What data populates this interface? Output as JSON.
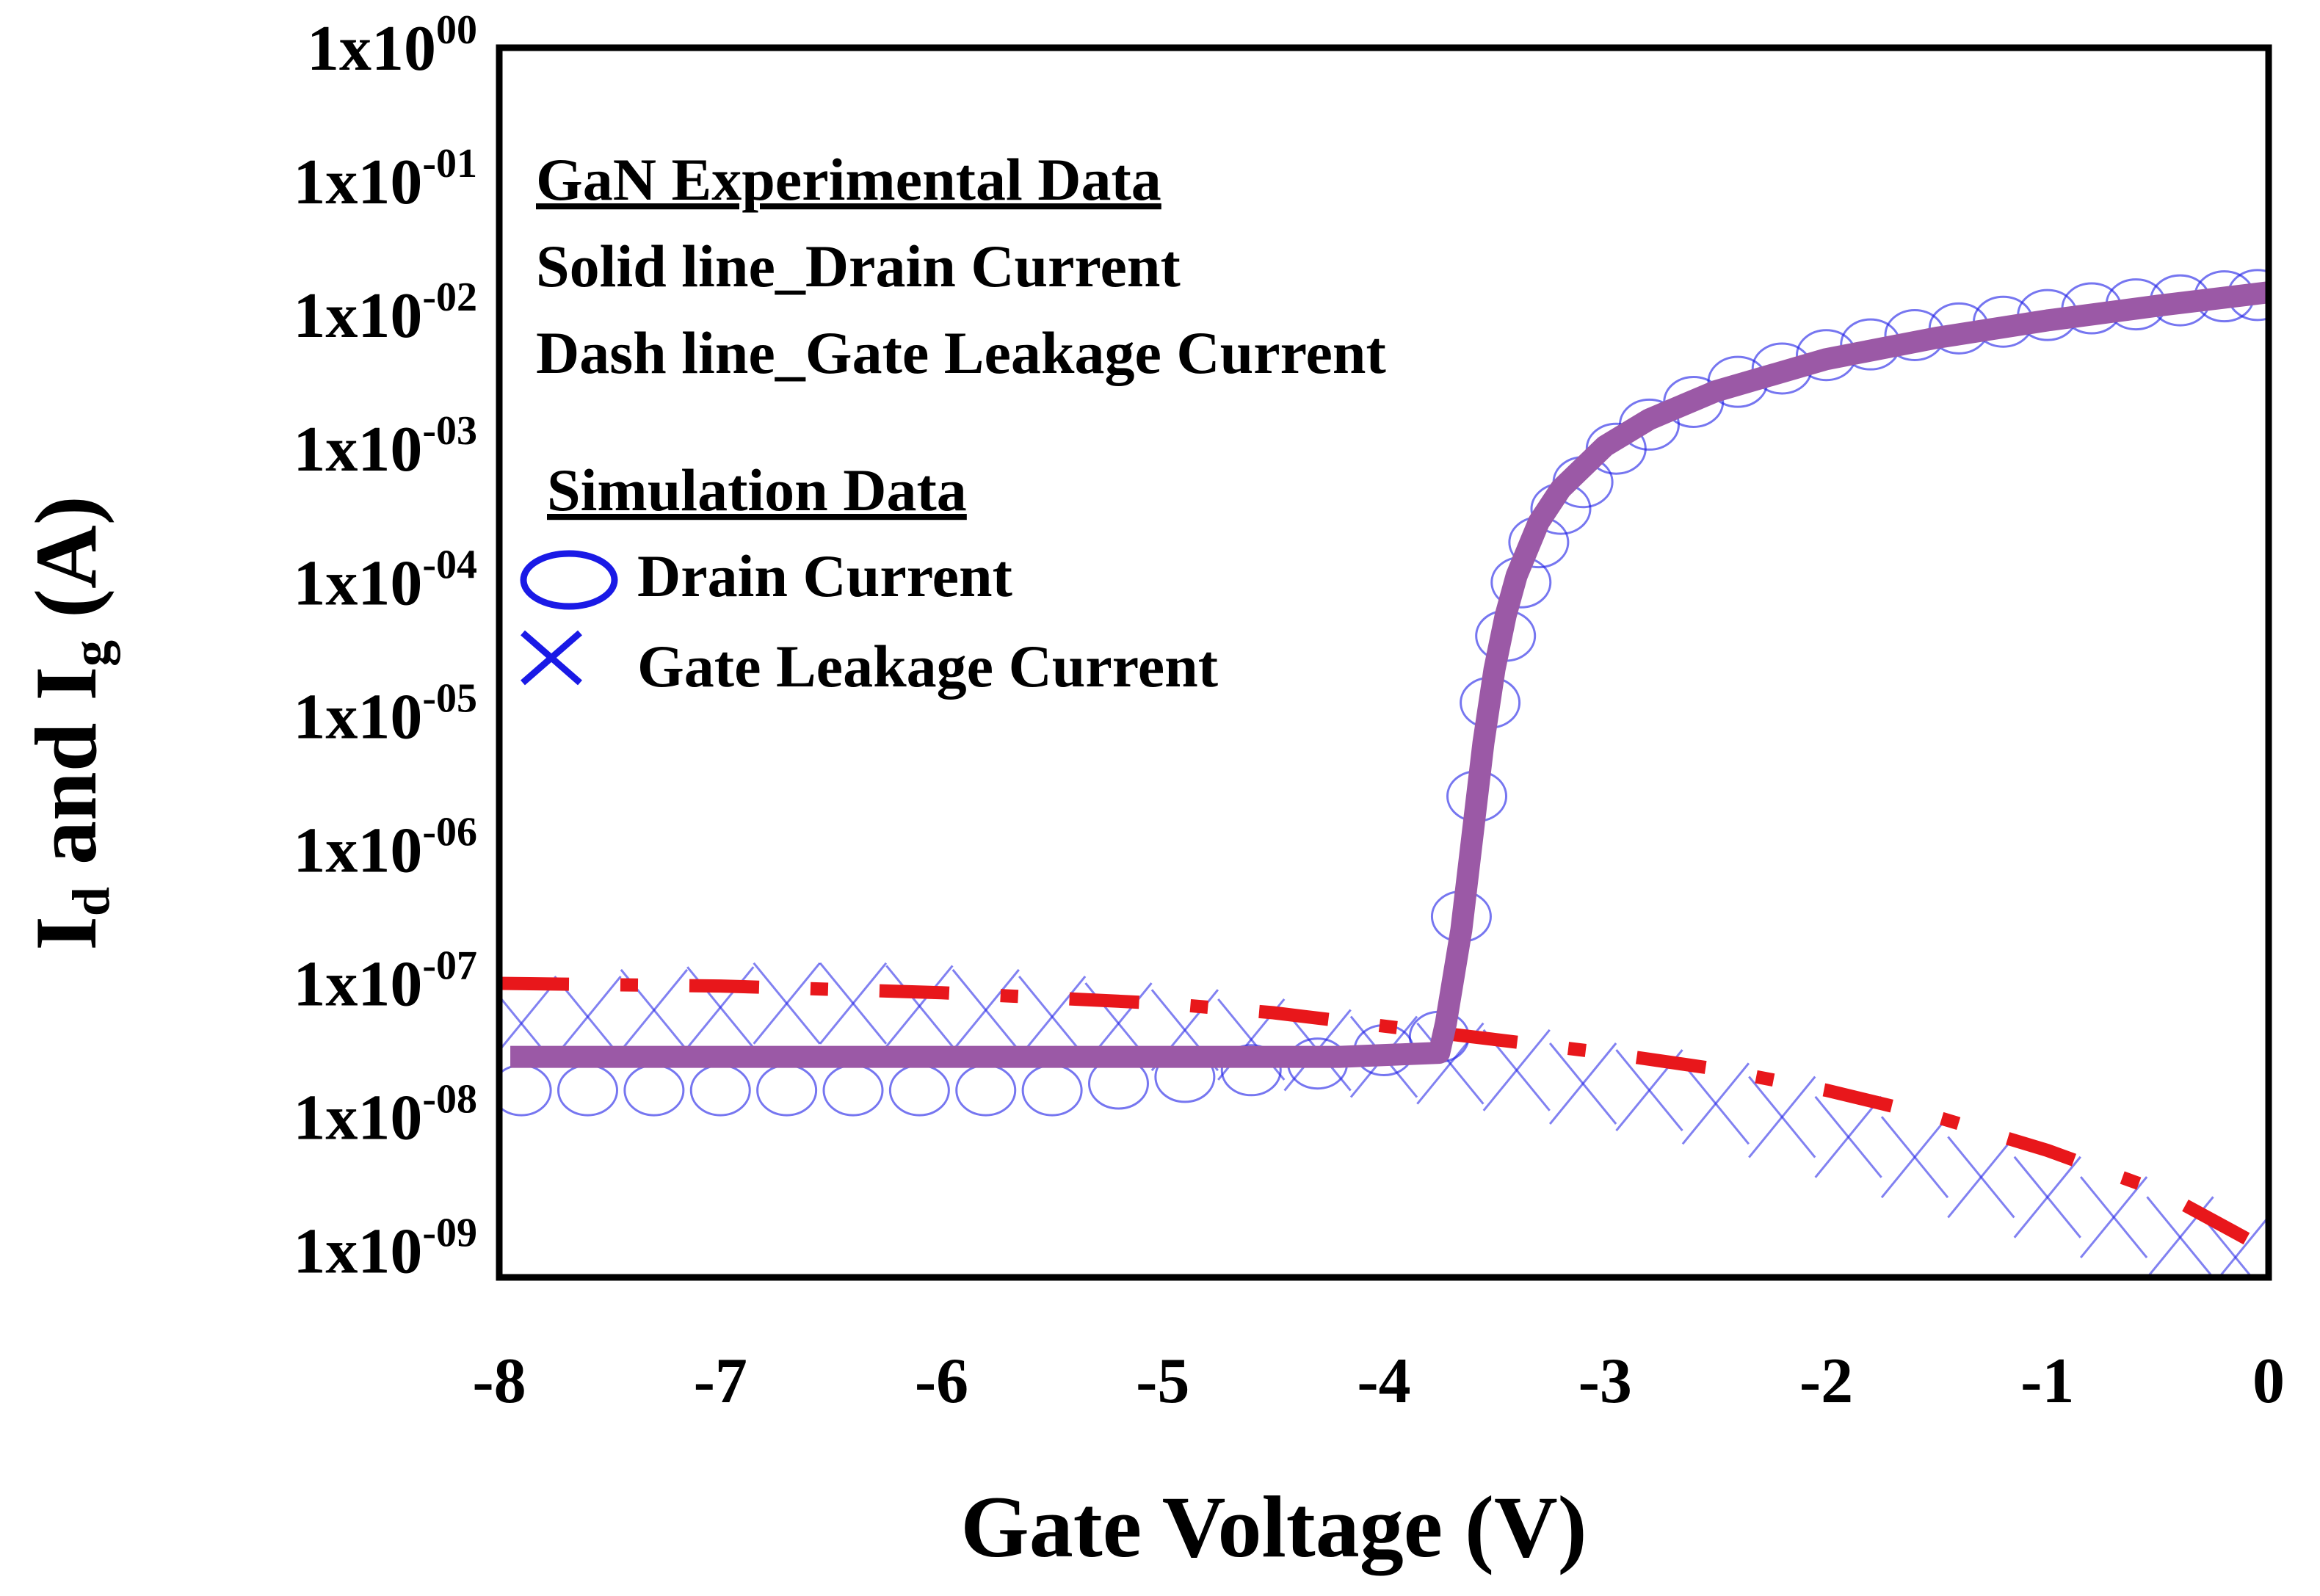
{
  "chart_data": {
    "type": "line",
    "title": "",
    "xlabel": "Gate Voltage (V)",
    "ylabel": {
      "main": "I",
      "sub1": "d",
      "mid": " and I",
      "sub2": "g",
      "tail": " (A)"
    },
    "scale": {
      "x": "linear",
      "y": "log10"
    },
    "xlim": [
      -8,
      0
    ],
    "ylim_exp": [
      -9.2,
      0
    ],
    "x_ticks": [
      {
        "value": -8,
        "label": "-8"
      },
      {
        "value": -7,
        "label": "-7"
      },
      {
        "value": -6,
        "label": "-6"
      },
      {
        "value": -5,
        "label": "-5"
      },
      {
        "value": -4,
        "label": "-4"
      },
      {
        "value": -3,
        "label": "-3"
      },
      {
        "value": -2,
        "label": "-2"
      },
      {
        "value": -1,
        "label": "-1"
      },
      {
        "value": 0,
        "label": "0"
      }
    ],
    "y_ticks": [
      {
        "exp": 0,
        "base": "1x10",
        "power": "00"
      },
      {
        "exp": -1,
        "base": "1x10",
        "power": "-01"
      },
      {
        "exp": -2,
        "base": "1x10",
        "power": "-02"
      },
      {
        "exp": -3,
        "base": "1x10",
        "power": "-03"
      },
      {
        "exp": -4,
        "base": "1x10",
        "power": "-04"
      },
      {
        "exp": -5,
        "base": "1x10",
        "power": "-05"
      },
      {
        "exp": -6,
        "base": "1x10",
        "power": "-06"
      },
      {
        "exp": -7,
        "base": "1x10",
        "power": "-07"
      },
      {
        "exp": -8,
        "base": "1x10",
        "power": "-08"
      },
      {
        "exp": -9,
        "base": "1x10",
        "power": "-09"
      }
    ],
    "legend": {
      "placement": "top-left",
      "experimental_heading": "GaN Experimental  Data",
      "experimental_solid": "Solid line_Drain  Current",
      "experimental_dash": "Dash line_Gate Leakage Current",
      "simulation_heading": "Simulation  Data",
      "sim_drain_label": "Drain Current",
      "sim_gate_label": "Gate Leakage Current"
    },
    "colors": {
      "experimental_drain": "#9b59a6",
      "experimental_gate": "#e8171b",
      "simulation": "#1a1ae6",
      "frame": "#000000"
    },
    "series": [
      {
        "name": "Experimental Drain Current",
        "style": "solid",
        "x": [
          -7.95,
          -6,
          -5,
          -4.2,
          -3.75,
          -3.72,
          -3.65,
          -3.6,
          -3.55,
          -3.5,
          -3.45,
          -3.4,
          -3.3,
          -3.2,
          -3.0,
          -2.8,
          -2.5,
          -2.0,
          -1.5,
          -1.0,
          -0.5,
          0.0
        ],
        "log10_y": [
          -7.55,
          -7.55,
          -7.55,
          -7.55,
          -7.52,
          -7.3,
          -6.6,
          -5.9,
          -5.2,
          -4.65,
          -4.25,
          -3.95,
          -3.55,
          -3.3,
          -2.98,
          -2.78,
          -2.57,
          -2.33,
          -2.17,
          -2.04,
          -1.93,
          -1.83
        ]
      },
      {
        "name": "Experimental Gate Leakage Current",
        "style": "dashdot",
        "x": [
          -8,
          -7,
          -6,
          -5,
          -4.5,
          -4,
          -3.5,
          -3,
          -2.5,
          -2,
          -1.5,
          -1,
          -0.5,
          0
        ],
        "log10_y": [
          -7.0,
          -7.02,
          -7.07,
          -7.15,
          -7.22,
          -7.32,
          -7.42,
          -7.52,
          -7.64,
          -7.8,
          -8.0,
          -8.25,
          -8.55,
          -9.0
        ]
      },
      {
        "name": "Simulation Drain Current",
        "marker": "circle",
        "x": [
          -7.9,
          -7.6,
          -7.3,
          -7.0,
          -6.7,
          -6.4,
          -6.1,
          -5.8,
          -5.5,
          -5.2,
          -4.9,
          -4.6,
          -4.3,
          -4.0,
          -3.75,
          -3.65,
          -3.58,
          -3.52,
          -3.45,
          -3.38,
          -3.3,
          -3.2,
          -3.1,
          -2.95,
          -2.8,
          -2.6,
          -2.4,
          -2.2,
          -2.0,
          -1.8,
          -1.6,
          -1.4,
          -1.2,
          -1.0,
          -0.8,
          -0.6,
          -0.4,
          -0.2,
          -0.05
        ],
        "log10_y": [
          -7.8,
          -7.8,
          -7.8,
          -7.8,
          -7.8,
          -7.8,
          -7.8,
          -7.8,
          -7.8,
          -7.75,
          -7.7,
          -7.65,
          -7.6,
          -7.5,
          -7.4,
          -6.5,
          -5.6,
          -4.9,
          -4.4,
          -4.0,
          -3.7,
          -3.45,
          -3.25,
          -3.0,
          -2.82,
          -2.65,
          -2.5,
          -2.4,
          -2.3,
          -2.22,
          -2.15,
          -2.1,
          -2.05,
          -2.0,
          -1.95,
          -1.92,
          -1.89,
          -1.86,
          -1.85
        ]
      },
      {
        "name": "Simulation Gate Leakage Current",
        "marker": "cross",
        "x": [
          -7.9,
          -7.6,
          -7.3,
          -7.0,
          -6.7,
          -6.4,
          -6.1,
          -5.8,
          -5.5,
          -5.2,
          -4.9,
          -4.6,
          -4.3,
          -4.0,
          -3.7,
          -3.4,
          -3.1,
          -2.8,
          -2.5,
          -2.2,
          -1.9,
          -1.6,
          -1.3,
          -1.0,
          -0.7,
          -0.4,
          -0.15
        ],
        "log10_y": [
          -7.3,
          -7.25,
          -7.2,
          -7.18,
          -7.15,
          -7.15,
          -7.17,
          -7.2,
          -7.25,
          -7.3,
          -7.35,
          -7.42,
          -7.5,
          -7.55,
          -7.6,
          -7.65,
          -7.75,
          -7.8,
          -7.9,
          -8.0,
          -8.15,
          -8.3,
          -8.45,
          -8.6,
          -8.75,
          -8.9,
          -9.05
        ]
      }
    ]
  }
}
